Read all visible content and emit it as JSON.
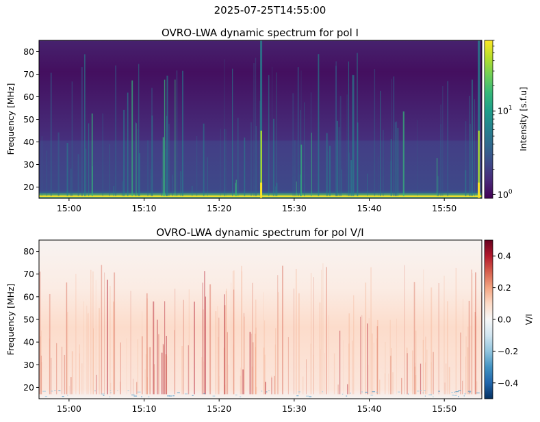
{
  "suptitle": "2025-07-25T14:55:00",
  "colors": {
    "viridis": [
      "#440154",
      "#482878",
      "#3e4989",
      "#31688e",
      "#26828e",
      "#1f9e89",
      "#35b779",
      "#6ece58",
      "#b5de2b",
      "#fde725"
    ],
    "rdbu_r": [
      "#053061",
      "#2166ac",
      "#4393c3",
      "#92c5de",
      "#d1e5f0",
      "#f7f7f7",
      "#fddbc7",
      "#f4a582",
      "#d6604d",
      "#b2182b",
      "#67001f"
    ]
  },
  "chart_data": [
    {
      "type": "heatmap",
      "title": "OVRO-LWA dynamic spectrum for pol I",
      "xlabel": "",
      "ylabel": "Frequency [MHz]",
      "x_ticks": [
        "15:00",
        "15:10",
        "15:20",
        "15:30",
        "15:40",
        "15:50"
      ],
      "x_range": [
        "14:56",
        "15:55"
      ],
      "y_ticks": [
        "20",
        "30",
        "40",
        "50",
        "60",
        "70",
        "80"
      ],
      "ylim": [
        15,
        85
      ],
      "colormap": "viridis",
      "colorbar": {
        "label": "Intensity [s.f.u]",
        "scale": "log",
        "range": [
          0.9,
          70
        ],
        "tick_labels": [
          {
            "base": "10",
            "exp": "0",
            "value": 1
          },
          {
            "base": "10",
            "exp": "1",
            "value": 10
          }
        ]
      },
      "features": {
        "strong_bursts_time": [
          "15:25.6",
          "15:54.6"
        ],
        "low_frequency_band_mhz": [
          15,
          17
        ]
      }
    },
    {
      "type": "heatmap",
      "title": "OVRO-LWA dynamic spectrum for pol V/I",
      "xlabel": "",
      "ylabel": "Frequency [MHz]",
      "x_ticks": [
        "15:00",
        "15:10",
        "15:20",
        "15:30",
        "15:40",
        "15:50"
      ],
      "x_range": [
        "14:56",
        "15:55"
      ],
      "y_ticks": [
        "20",
        "30",
        "40",
        "50",
        "60",
        "70",
        "80"
      ],
      "ylim": [
        15,
        85
      ],
      "colormap": "RdBu_r",
      "colorbar": {
        "label": "V/I",
        "scale": "linear",
        "range": [
          -0.5,
          0.5
        ],
        "tick_labels": [
          "0.4",
          "0.2",
          "0.0",
          "−0.2",
          "−0.4"
        ],
        "tick_values": [
          0.4,
          0.2,
          0.0,
          -0.2,
          -0.4
        ]
      }
    }
  ]
}
